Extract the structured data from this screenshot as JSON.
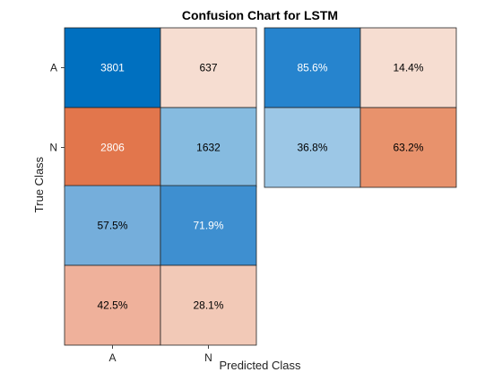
{
  "chart_data": {
    "type": "heatmap",
    "title": "Confusion Chart for LSTM",
    "xlabel": "Predicted Class",
    "ylabel": "True Class",
    "class_labels": [
      "A",
      "N"
    ],
    "matrix": {
      "rows": [
        "A",
        "N"
      ],
      "cols": [
        "A",
        "N"
      ],
      "values": [
        [
          3801,
          637
        ],
        [
          2806,
          1632
        ]
      ]
    },
    "row_summary": {
      "values": [
        [
          "85.6%",
          "14.4%"
        ],
        [
          "36.8%",
          "63.2%"
        ]
      ],
      "fill_fraction": [
        [
          0.856,
          0.144
        ],
        [
          0.368,
          0.632
        ]
      ]
    },
    "column_summary": {
      "values": [
        [
          "57.5%",
          "71.9%"
        ],
        [
          "42.5%",
          "28.1%"
        ]
      ],
      "fill_fraction": [
        [
          0.575,
          0.719
        ],
        [
          0.425,
          0.281
        ]
      ]
    },
    "colors": {
      "matrix": [
        [
          "#0070C0",
          "#F6DDD1"
        ],
        [
          "#E2764C",
          "#86BBE0"
        ]
      ],
      "row_summary": [
        [
          "#2684CE",
          "#F6DDD1"
        ],
        [
          "#9CC7E6",
          "#E8926C"
        ]
      ],
      "column_summary": [
        [
          "#75AEDB",
          "#3E8FD0"
        ],
        [
          "#EFB19B",
          "#F2C9B7"
        ]
      ],
      "diagonal_text": "#ffffff",
      "text": "#000000",
      "frame": "#222222"
    }
  }
}
